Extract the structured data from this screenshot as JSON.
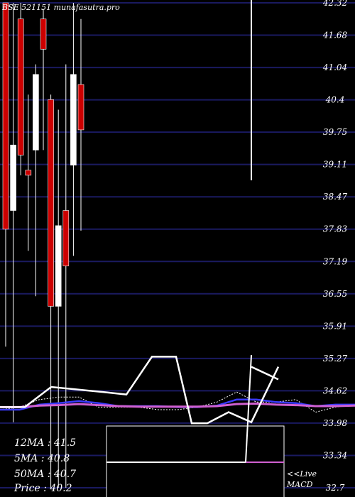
{
  "chart_data": {
    "type": "candlestick",
    "title": "BSE 521151 munafasutra.pro",
    "y_ticks": [
      "42.32",
      "41.68",
      "41.04",
      "40.4",
      "39.75",
      "39.11",
      "38.47",
      "37.83",
      "37.19",
      "36.55",
      "35.91",
      "35.27",
      "34.62",
      "33.98",
      "33.34",
      "32.7"
    ],
    "ylim": [
      32.7,
      42.32
    ],
    "grid": true,
    "candles": [
      {
        "open": 42.32,
        "close": 37.83,
        "high": 42.32,
        "low": 35.5,
        "color": "red"
      },
      {
        "open": 38.2,
        "close": 39.5,
        "high": 42.32,
        "low": 34.0,
        "color": "white"
      },
      {
        "open": 42.0,
        "close": 39.3,
        "high": 42.32,
        "low": 38.9,
        "color": "red"
      },
      {
        "open": 39.0,
        "close": 38.9,
        "high": 40.5,
        "low": 37.4,
        "color": "red"
      },
      {
        "open": 39.4,
        "close": 40.9,
        "high": 41.1,
        "low": 36.5,
        "color": "white"
      },
      {
        "open": 42.0,
        "close": 41.4,
        "high": 42.2,
        "low": 39.4,
        "color": "red"
      },
      {
        "open": 40.4,
        "close": 36.3,
        "high": 40.5,
        "low": 32.7,
        "color": "red"
      },
      {
        "open": 36.3,
        "close": 37.9,
        "high": 40.2,
        "low": 32.7,
        "color": "white"
      },
      {
        "open": 38.2,
        "close": 37.1,
        "high": 41.1,
        "low": 32.7,
        "color": "red"
      },
      {
        "open": 39.1,
        "close": 40.9,
        "high": 42.32,
        "low": 37.3,
        "color": "white"
      },
      {
        "open": 40.7,
        "close": 39.8,
        "high": 42.0,
        "low": 37.8,
        "color": "red"
      }
    ],
    "indicators": {
      "macd_line": [
        34.3,
        34.3,
        34.7,
        34.65,
        34.6,
        34.55,
        35.3,
        35.3,
        33.98,
        33.98,
        34.2,
        34.0,
        35.1,
        34.9
      ],
      "signal_line": [
        34.25,
        34.3,
        34.45,
        34.5,
        34.5,
        34.3,
        34.3,
        34.3,
        34.25,
        34.25,
        34.3,
        34.4,
        34.6,
        34.4,
        34.4,
        34.45,
        34.2,
        34.3,
        34.35
      ],
      "ma_blue": [
        34.25,
        34.25,
        34.35,
        34.38,
        34.42,
        34.38,
        34.32,
        34.32,
        34.32,
        34.3,
        34.3,
        34.33,
        34.45,
        34.45,
        34.4,
        34.38,
        34.32,
        34.35,
        34.35
      ],
      "ma_magenta": [
        34.3,
        34.3,
        34.33,
        34.34,
        34.36,
        34.34,
        34.32,
        34.31,
        34.31,
        34.31,
        34.31,
        34.32,
        34.36,
        34.37,
        34.35,
        34.34,
        34.32,
        34.32,
        34.33
      ]
    },
    "macd_box": {
      "live_label": "<<Live",
      "name": "MACD"
    },
    "legend_position": "bottom-left",
    "legend": [
      {
        "label": "12MA",
        "value": "41.5"
      },
      {
        "label": "5MA",
        "value": "40.8"
      },
      {
        "label": "50MA",
        "value": "40.7"
      },
      {
        "label": "Price",
        "value": "40.2"
      }
    ],
    "colors": {
      "background": "#000000",
      "grid": "#1a1a60",
      "up": "#ffffff",
      "down": "#cc0000",
      "blue": "#3a3aff",
      "magenta": "#d060d0"
    }
  }
}
